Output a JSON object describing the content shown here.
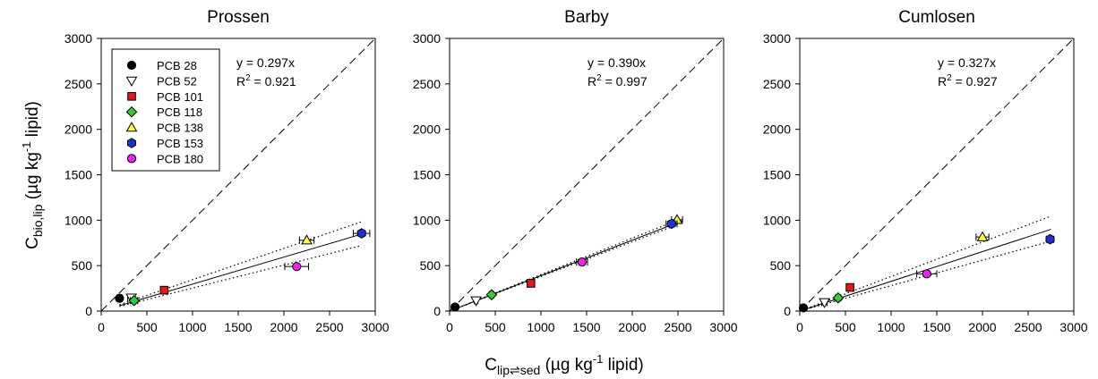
{
  "figure": {
    "ylabel_main": "C",
    "ylabel_sub": "bio,lip",
    "ylabel_unit_pre": " (µg kg",
    "ylabel_unit_sup": "-1",
    "ylabel_unit_post": " lipid)",
    "xlabel_main": "C",
    "xlabel_sub": "lip⇌sed",
    "xlabel_unit_pre": " (µg kg",
    "xlabel_unit_sup": "-1",
    "xlabel_unit_post": " lipid)"
  },
  "legend": {
    "placement": "top-left of first panel",
    "items": [
      {
        "label": "PCB 28",
        "marker": "circle",
        "color": "#000000"
      },
      {
        "label": "PCB 52",
        "marker": "triangle-down",
        "color": "#ffffff"
      },
      {
        "label": "PCB 101",
        "marker": "square",
        "color": "#e8141b"
      },
      {
        "label": "PCB 118",
        "marker": "diamond",
        "color": "#33cc33"
      },
      {
        "label": "PCB 138",
        "marker": "triangle-up",
        "color": "#ffff33"
      },
      {
        "label": "PCB 153",
        "marker": "hexagon",
        "color": "#1f2fd6"
      },
      {
        "label": "PCB 180",
        "marker": "circle",
        "color": "#ee22ee"
      }
    ]
  },
  "chart_data": [
    {
      "type": "scatter",
      "title": "Prossen",
      "xlim": [
        0,
        3000
      ],
      "ylim": [
        0,
        3000
      ],
      "xticks": [
        "0",
        "500",
        "1000",
        "1500",
        "2000",
        "2500",
        "3000"
      ],
      "yticks": [
        "0",
        "500",
        "1000",
        "1500",
        "2000",
        "2500",
        "3000"
      ],
      "grid": false,
      "equation": "y = 0.297x",
      "r2_label": "R",
      "r2_sup": "2",
      "r2_value": " = 0.921",
      "slope": 0.297,
      "fit_range": [
        200,
        2850
      ],
      "ci_lower_slope": 0.253,
      "ci_upper_slope": 0.345,
      "points": [
        {
          "series": "PCB 28",
          "x": 200,
          "y": 140,
          "xerr": 30
        },
        {
          "series": "PCB 52",
          "x": 330,
          "y": 145,
          "xerr": 40
        },
        {
          "series": "PCB 101",
          "x": 690,
          "y": 230,
          "xerr": 40
        },
        {
          "series": "PCB 118",
          "x": 360,
          "y": 115,
          "xerr": 40
        },
        {
          "series": "PCB 138",
          "x": 2250,
          "y": 780,
          "xerr": 80
        },
        {
          "series": "PCB 153",
          "x": 2850,
          "y": 855,
          "xerr": 90
        },
        {
          "series": "PCB 180",
          "x": 2140,
          "y": 490,
          "xerr": 130
        }
      ]
    },
    {
      "type": "scatter",
      "title": "Barby",
      "xlim": [
        0,
        3000
      ],
      "ylim": [
        0,
        3000
      ],
      "xticks": [
        "0",
        "500",
        "1000",
        "1500",
        "2000",
        "2500",
        "3000"
      ],
      "yticks": [
        "0",
        "500",
        "1000",
        "1500",
        "2000",
        "2500",
        "3000"
      ],
      "grid": false,
      "equation": "y = 0.390x",
      "r2_label": "R",
      "r2_sup": "2",
      "r2_value": " = 0.997",
      "slope": 0.39,
      "fit_range": [
        50,
        2550
      ],
      "ci_lower_slope": 0.381,
      "ci_upper_slope": 0.401,
      "points": [
        {
          "series": "PCB 28",
          "x": 60,
          "y": 45,
          "xerr": 10
        },
        {
          "series": "PCB 52",
          "x": 290,
          "y": 115,
          "xerr": 20
        },
        {
          "series": "PCB 101",
          "x": 890,
          "y": 305,
          "xerr": 30
        },
        {
          "series": "PCB 118",
          "x": 460,
          "y": 180,
          "xerr": 25
        },
        {
          "series": "PCB 138",
          "x": 2490,
          "y": 1005,
          "xerr": 60
        },
        {
          "series": "PCB 153",
          "x": 2430,
          "y": 960,
          "xerr": 60
        },
        {
          "series": "PCB 180",
          "x": 1450,
          "y": 540,
          "xerr": 60
        }
      ]
    },
    {
      "type": "scatter",
      "title": "Cumlosen",
      "xlim": [
        0,
        3000
      ],
      "ylim": [
        0,
        3000
      ],
      "xticks": [
        "0",
        "500",
        "1000",
        "1500",
        "2000",
        "2500",
        "3000"
      ],
      "yticks": [
        "0",
        "500",
        "1000",
        "1500",
        "2000",
        "2500",
        "3000"
      ],
      "grid": false,
      "equation": "y = 0.327x",
      "r2_label": "R",
      "r2_sup": "2",
      "r2_value": " = 0.927",
      "slope": 0.327,
      "fit_range": [
        30,
        2750
      ],
      "ci_lower_slope": 0.28,
      "ci_upper_slope": 0.38,
      "points": [
        {
          "series": "PCB 28",
          "x": 40,
          "y": 35,
          "xerr": 10
        },
        {
          "series": "PCB 52",
          "x": 270,
          "y": 95,
          "xerr": 30
        },
        {
          "series": "PCB 101",
          "x": 550,
          "y": 260,
          "xerr": 30
        },
        {
          "series": "PCB 118",
          "x": 420,
          "y": 145,
          "xerr": 30
        },
        {
          "series": "PCB 138",
          "x": 2000,
          "y": 815,
          "xerr": 70
        },
        {
          "series": "PCB 153",
          "x": 2740,
          "y": 790,
          "xerr": 40
        },
        {
          "series": "PCB 180",
          "x": 1390,
          "y": 410,
          "xerr": 110
        }
      ]
    }
  ]
}
